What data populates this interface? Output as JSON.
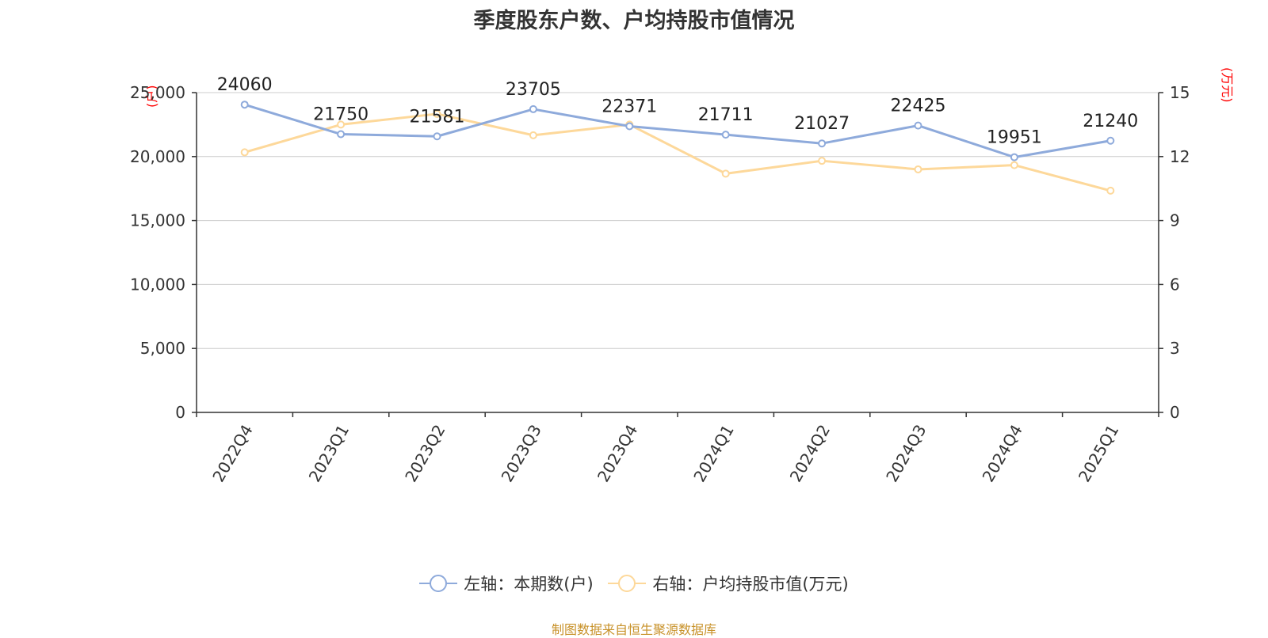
{
  "title": "季度股东户数、户均持股市值情况",
  "left_axis_unit": "(户)",
  "right_axis_unit": "(万元)",
  "source": "制图数据来自恒生聚源数据库",
  "colors": {
    "series1": "#8eaadb",
    "series2": "#fdd89a",
    "axis": "#333333",
    "grid": "#cccccc",
    "unit": "#ff0000",
    "source": "#c8922a"
  },
  "chart_data": {
    "type": "line",
    "title": "季度股东户数、户均持股市值情况",
    "categories": [
      "2022Q4",
      "2023Q1",
      "2023Q2",
      "2023Q3",
      "2023Q4",
      "2024Q1",
      "2024Q2",
      "2024Q3",
      "2024Q4",
      "2025Q1"
    ],
    "y_left": {
      "label": "(户)",
      "lim": [
        0,
        25000
      ],
      "ticks": [
        0,
        5000,
        10000,
        15000,
        20000,
        25000
      ],
      "tick_labels": [
        "0",
        "5,000",
        "10,000",
        "15,000",
        "20,000",
        "25,000"
      ]
    },
    "y_right": {
      "label": "(万元)",
      "lim": [
        0,
        15
      ],
      "ticks": [
        0,
        3,
        6,
        9,
        12,
        15
      ],
      "tick_labels": [
        "0",
        "3",
        "6",
        "9",
        "12",
        "15"
      ]
    },
    "grid": true,
    "legend_position": "bottom",
    "series": [
      {
        "name": "左轴：本期数(户)",
        "axis": "left",
        "color": "#8eaadb",
        "show_labels": true,
        "values": [
          24060,
          21750,
          21581,
          23705,
          22371,
          21711,
          21027,
          22425,
          19951,
          21240
        ]
      },
      {
        "name": "右轴：户均持股市值(万元)",
        "axis": "right",
        "color": "#fdd89a",
        "show_labels": false,
        "values": [
          12.2,
          13.5,
          14.0,
          13.0,
          13.5,
          11.2,
          11.8,
          11.4,
          11.6,
          10.4
        ]
      }
    ]
  }
}
